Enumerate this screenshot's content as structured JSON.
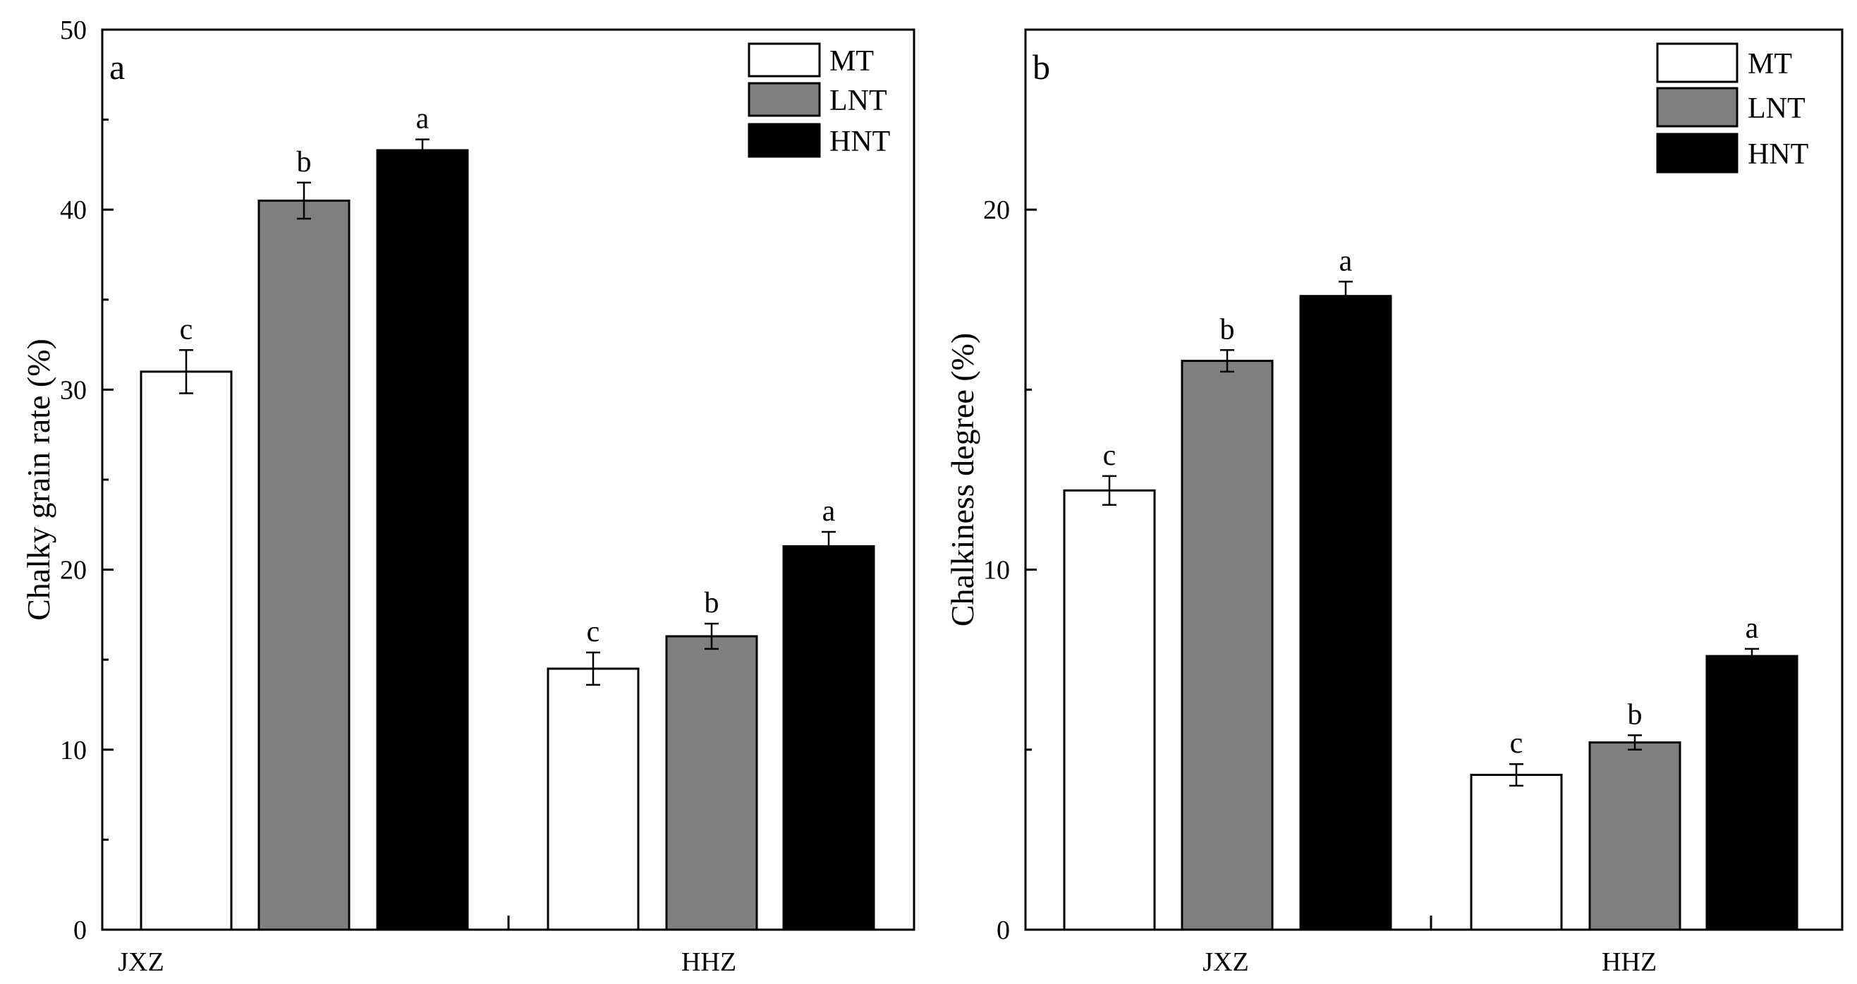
{
  "colors": {
    "MT": "#ffffff",
    "LNT": "#808080",
    "HNT": "#000000",
    "axis": "#000000"
  },
  "chart_data": [
    {
      "type": "bar",
      "panel": "a",
      "title": "",
      "xlabel": "",
      "ylabel": "Chalky grain rate (%)",
      "ylim": [
        0,
        50
      ],
      "yticks": [
        0,
        10,
        20,
        30,
        40,
        50
      ],
      "grid": false,
      "legend_position": "top-right",
      "categories": [
        "JXZ",
        "HHZ"
      ],
      "series": [
        {
          "name": "MT",
          "color": "#ffffff",
          "values": [
            31.0,
            14.5
          ],
          "errors": [
            1.2,
            0.9
          ],
          "labels": [
            "c",
            "c"
          ]
        },
        {
          "name": "LNT",
          "color": "#808080",
          "values": [
            40.5,
            16.3
          ],
          "errors": [
            1.0,
            0.7
          ],
          "labels": [
            "b",
            "b"
          ]
        },
        {
          "name": "HNT",
          "color": "#000000",
          "values": [
            43.3,
            21.3
          ],
          "errors": [
            0.6,
            0.8
          ],
          "labels": [
            "a",
            "a"
          ]
        }
      ]
    },
    {
      "type": "bar",
      "panel": "b",
      "title": "",
      "xlabel": "",
      "ylabel": "Chalkiness degree (%)",
      "ylim": [
        0,
        25
      ],
      "yticks": [
        0,
        10,
        20
      ],
      "grid": false,
      "legend_position": "top-right",
      "categories": [
        "JXZ",
        "HHZ"
      ],
      "series": [
        {
          "name": "MT",
          "color": "#ffffff",
          "values": [
            12.2,
            4.3
          ],
          "errors": [
            0.4,
            0.3
          ],
          "labels": [
            "c",
            "c"
          ]
        },
        {
          "name": "LNT",
          "color": "#808080",
          "values": [
            15.8,
            5.2
          ],
          "errors": [
            0.3,
            0.2
          ],
          "labels": [
            "b",
            "b"
          ]
        },
        {
          "name": "HNT",
          "color": "#000000",
          "values": [
            17.6,
            7.6
          ],
          "errors": [
            0.4,
            0.2
          ],
          "labels": [
            "a",
            "a"
          ]
        }
      ]
    }
  ]
}
